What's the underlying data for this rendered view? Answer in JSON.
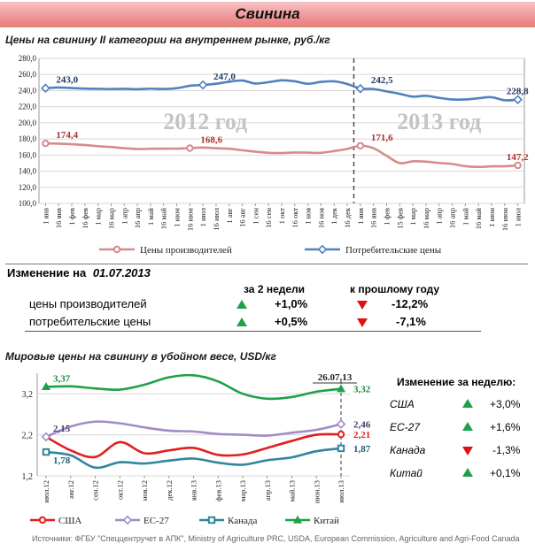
{
  "title": "Свинина",
  "section1": {
    "title": "Цены на свинину II категории на внутреннем рынке, руб./кг"
  },
  "change": {
    "title_prefix": "Изменение на",
    "date": "01.07.2013",
    "col1": "за 2 недели",
    "col2": "к прошлому году",
    "rows": [
      {
        "label": "цены производителей",
        "w2": "+1,0%",
        "yoy": "-12,2%",
        "w2_dir": "up",
        "yoy_dir": "down"
      },
      {
        "label": "потребительские цены",
        "w2": "+0,5%",
        "yoy": "-7,1%",
        "w2_dir": "up",
        "yoy_dir": "down"
      }
    ]
  },
  "section2": {
    "title": "Мировые цены на свинину в убойном весе, USD/кг"
  },
  "weekly": {
    "title": "Изменение за неделю:",
    "rows": [
      {
        "label": "США",
        "value": "+3,0%",
        "dir": "up"
      },
      {
        "label": "ЕС-27",
        "value": "+1,6%",
        "dir": "up"
      },
      {
        "label": "Канада",
        "value": "-1,3%",
        "dir": "down"
      },
      {
        "label": "Китай",
        "value": "+0,1%",
        "dir": "up"
      }
    ]
  },
  "source": "Источники: ФГБУ \"Спеццентручет в АПК\", Ministry of Agriculture PRC, USDA, European Commission, Agriculture and Agri-Food Canada",
  "chart_data": [
    {
      "type": "line",
      "x": [
        "1 янв",
        "16 янв",
        "1 фев",
        "16 фев",
        "1 мар",
        "16 мар",
        "1 апр",
        "16 апр",
        "1 май",
        "16 май",
        "1 июн",
        "16 июн",
        "1 июл",
        "16 июл",
        "1 авг",
        "16 авг",
        "1 сен",
        "16 сен",
        "1 окт",
        "16 окт",
        "1 ноя",
        "16 ноя",
        "1 дек",
        "16 дек",
        "1 янв",
        "16 янв",
        "1 фев",
        "15 фев",
        "1 мар",
        "16 мар",
        "1 апр",
        "16 апр",
        "1 май",
        "16 май",
        "1 июн",
        "16 июн",
        "1 июл"
      ],
      "ylim": [
        100,
        280
      ],
      "yticks": [
        "100,0",
        "120,0",
        "140,0",
        "160,0",
        "180,0",
        "200,0",
        "220,0",
        "240,0",
        "260,0",
        "280,0"
      ],
      "grid": true,
      "legend": "bottom",
      "split_after_index": 23,
      "period_labels": [
        "2012 год",
        "2013 год"
      ],
      "series": [
        {
          "name": "Цены производителей",
          "color": "#d98a8a",
          "values": [
            174.4,
            174.2,
            173.5,
            172.5,
            171,
            170,
            168.5,
            167.5,
            167.8,
            168,
            168,
            168.6,
            169.3,
            168.5,
            167.8,
            166,
            164.2,
            162.8,
            162.5,
            163.2,
            163,
            162.8,
            165,
            167.6,
            171.6,
            168.5,
            159,
            150,
            152.2,
            151.8,
            150.2,
            149,
            146.2,
            145.3,
            146,
            146.2,
            147.2
          ],
          "labels": [
            {
              "i": 0,
              "text": "174,4"
            },
            {
              "i": 11,
              "text": "168,6"
            },
            {
              "i": 24,
              "text": "171,6"
            },
            {
              "i": 36,
              "text": "147,2"
            }
          ]
        },
        {
          "name": "Потребительские цены",
          "color": "#4f81bd",
          "values": [
            243,
            243.8,
            243.2,
            242.5,
            242.2,
            242,
            242.2,
            241.8,
            242.4,
            242,
            243,
            246,
            247,
            248.5,
            251,
            252.5,
            248.8,
            250.5,
            252.8,
            251.5,
            248.5,
            250.8,
            251.5,
            248.2,
            242.5,
            242,
            239,
            236,
            232.5,
            233.5,
            231,
            229,
            229,
            230.5,
            231.8,
            228,
            228.8
          ],
          "labels": [
            {
              "i": 0,
              "text": "243,0"
            },
            {
              "i": 12,
              "text": "247,0"
            },
            {
              "i": 24,
              "text": "242,5"
            },
            {
              "i": 36,
              "text": "228,8"
            }
          ]
        }
      ]
    },
    {
      "type": "line",
      "x": [
        "июл.12",
        "авг.12",
        "сен.12",
        "окт.12",
        "ноя.12",
        "дек.12",
        "янв.13",
        "фев.13",
        "мар.13",
        "апр.13",
        "май.13",
        "июн.13",
        "июл.13"
      ],
      "ylim": [
        1.2,
        3.7
      ],
      "yticks": [
        "1,2",
        "2,2",
        "3,2"
      ],
      "grid": true,
      "legend": "bottom",
      "marker_date": "26.07.13",
      "series": [
        {
          "name": "США",
          "color": "#e31e1e",
          "marker": "circle",
          "values": [
            2.15,
            1.82,
            1.66,
            2.02,
            1.75,
            1.82,
            1.88,
            1.71,
            1.72,
            1.88,
            2.05,
            2.2,
            2.21
          ],
          "labels": [
            {
              "i": 12,
              "text": "2,21"
            }
          ]
        },
        {
          "name": "ЕС-27",
          "color": "#a28cc6",
          "marker": "diamond",
          "values": [
            2.15,
            2.4,
            2.52,
            2.48,
            2.38,
            2.3,
            2.28,
            2.22,
            2.2,
            2.18,
            2.25,
            2.32,
            2.46
          ],
          "labels": [
            {
              "i": 0,
              "text": "2,15"
            },
            {
              "i": 12,
              "text": "2,46"
            }
          ]
        },
        {
          "name": "Канада",
          "color": "#31859c",
          "marker": "square",
          "values": [
            1.78,
            1.7,
            1.4,
            1.53,
            1.5,
            1.57,
            1.62,
            1.52,
            1.47,
            1.58,
            1.65,
            1.8,
            1.87
          ],
          "labels": [
            {
              "i": 0,
              "text": "1,78"
            },
            {
              "i": 12,
              "text": "1,87"
            }
          ]
        },
        {
          "name": "Китай",
          "color": "#1fa04a",
          "marker": "triangle",
          "values": [
            3.37,
            3.38,
            3.33,
            3.3,
            3.42,
            3.6,
            3.65,
            3.5,
            3.2,
            3.08,
            3.12,
            3.25,
            3.32
          ],
          "labels": [
            {
              "i": 0,
              "text": "3,37"
            },
            {
              "i": 12,
              "text": "3,32"
            }
          ]
        }
      ]
    }
  ]
}
